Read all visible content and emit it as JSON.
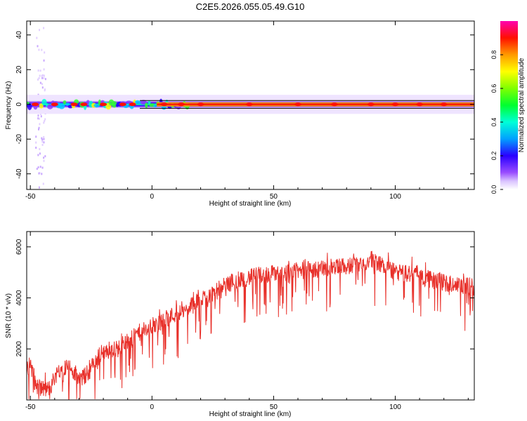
{
  "title": "C2E5.2026.055.05.49.G10",
  "chart_data": [
    {
      "type": "heatmap",
      "xlabel": "Height of straight line (km)",
      "ylabel": "Frequency (Hz)",
      "xlim": [
        -51.5,
        132.5
      ],
      "ylim": [
        -49,
        48
      ],
      "xticks": [
        "-50",
        "0",
        "50",
        "100"
      ],
      "yticks": [
        "40",
        "20",
        "0",
        "-20",
        "-40"
      ],
      "xtick_values": [
        -50,
        0,
        50,
        100
      ],
      "ytick_values": [
        40,
        20,
        0,
        -20,
        -40
      ],
      "colorbar": {
        "label": "Normalized spectral amplitude",
        "range": [
          0,
          1
        ],
        "ticks": [
          "0.0",
          "0.2",
          "0.4",
          "0.6",
          "0.8"
        ],
        "tick_values": [
          0,
          0.2,
          0.4,
          0.6,
          0.8
        ]
      },
      "band": {
        "center_frequency": 0,
        "half_width": 2.5,
        "scatter_x_range": [
          -48,
          -44
        ],
        "scatter_y_range": [
          -48,
          45
        ]
      },
      "hot_spots": [
        -48,
        -40,
        -32,
        -28,
        -20,
        -12,
        -8,
        5,
        12,
        20,
        40,
        60,
        75,
        90,
        100,
        110,
        120
      ]
    },
    {
      "type": "line",
      "xlabel": "Height of straight line (km)",
      "ylabel": "SNR (10 * v/v)",
      "xlim": [
        -51.5,
        132.5
      ],
      "ylim": [
        0,
        6600
      ],
      "xticks": [
        "-50",
        "0",
        "50",
        "100"
      ],
      "yticks": [
        "6000",
        "4000",
        "2000"
      ],
      "xtick_values": [
        -50,
        0,
        50,
        100
      ],
      "ytick_values": [
        6000,
        4000,
        2000
      ],
      "color": "#e8302a",
      "series": [
        {
          "x": [
            -51.5,
            -50,
            -48,
            -46,
            -44,
            -42,
            -40,
            -38,
            -36,
            -34,
            -32,
            -30,
            -28,
            -26,
            -24,
            -22,
            -20,
            -18,
            -16,
            -14,
            -12,
            -10,
            -8,
            -6,
            -4,
            -2,
            0,
            2,
            4,
            6,
            8,
            10,
            12,
            14,
            16,
            18,
            20,
            22,
            24,
            26,
            28,
            30,
            35,
            40,
            45,
            50,
            55,
            60,
            65,
            70,
            75,
            80,
            85,
            88,
            90,
            92,
            95,
            100,
            105,
            108,
            110,
            112,
            115,
            120,
            125,
            130,
            132.5
          ],
          "y": [
            1100,
            1500,
            600,
            500,
            400,
            450,
            900,
            1200,
            1300,
            1300,
            1000,
            800,
            900,
            1100,
            1400,
            1700,
            1900,
            1900,
            2000,
            2000,
            2200,
            2300,
            2400,
            2600,
            2700,
            2700,
            2900,
            2950,
            3000,
            3200,
            3300,
            3400,
            3450,
            3500,
            3650,
            3800,
            3950,
            4050,
            4150,
            4250,
            4350,
            4500,
            4700,
            4800,
            4900,
            4950,
            5000,
            5050,
            5100,
            5150,
            5200,
            5250,
            5300,
            5350,
            5500,
            5450,
            5250,
            5000,
            4950,
            4950,
            5100,
            4800,
            4700,
            4600,
            4500,
            4450,
            4450
          ]
        }
      ]
    }
  ]
}
